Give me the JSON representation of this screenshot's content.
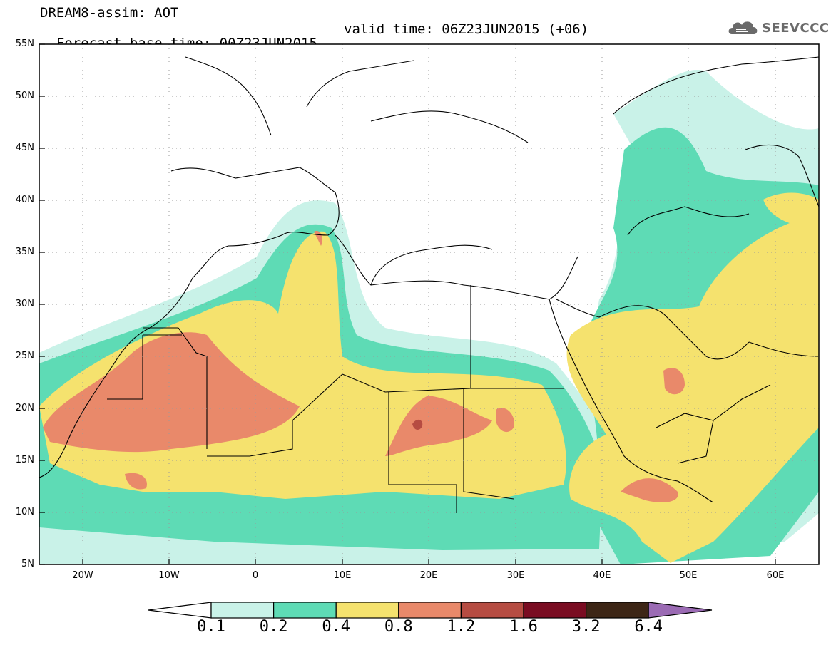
{
  "title": {
    "line1": "DREAM8-assim: AOT",
    "line2_base": "Forecast base time: 00Z23JUN2015",
    "line2_valid": "valid time: 06Z23JUN2015 (+06)"
  },
  "logo": {
    "text": "SEEVCCC"
  },
  "map": {
    "projection": "lat-lon",
    "extent": {
      "lon_min": -25,
      "lon_max": 65,
      "lat_min": 5,
      "lat_max": 55
    },
    "lat_labels": [
      "55N",
      "50N",
      "45N",
      "40N",
      "35N",
      "30N",
      "25N",
      "20N",
      "15N",
      "10N",
      "5N"
    ],
    "lon_labels": [
      "20W",
      "10W",
      "0",
      "10E",
      "20E",
      "30E",
      "40E",
      "50E",
      "60E"
    ],
    "variable": "AOT"
  },
  "colorbar": {
    "labels": [
      "0.1",
      "0.2",
      "0.4",
      "0.8",
      "1.2",
      "1.6",
      "3.2",
      "6.4"
    ],
    "colors": [
      "#c9f2e8",
      "#5edbb5",
      "#f5e26e",
      "#e9896a",
      "#b64c42",
      "#7a0c22",
      "#3d2616",
      "#9b6bb4"
    ]
  }
}
